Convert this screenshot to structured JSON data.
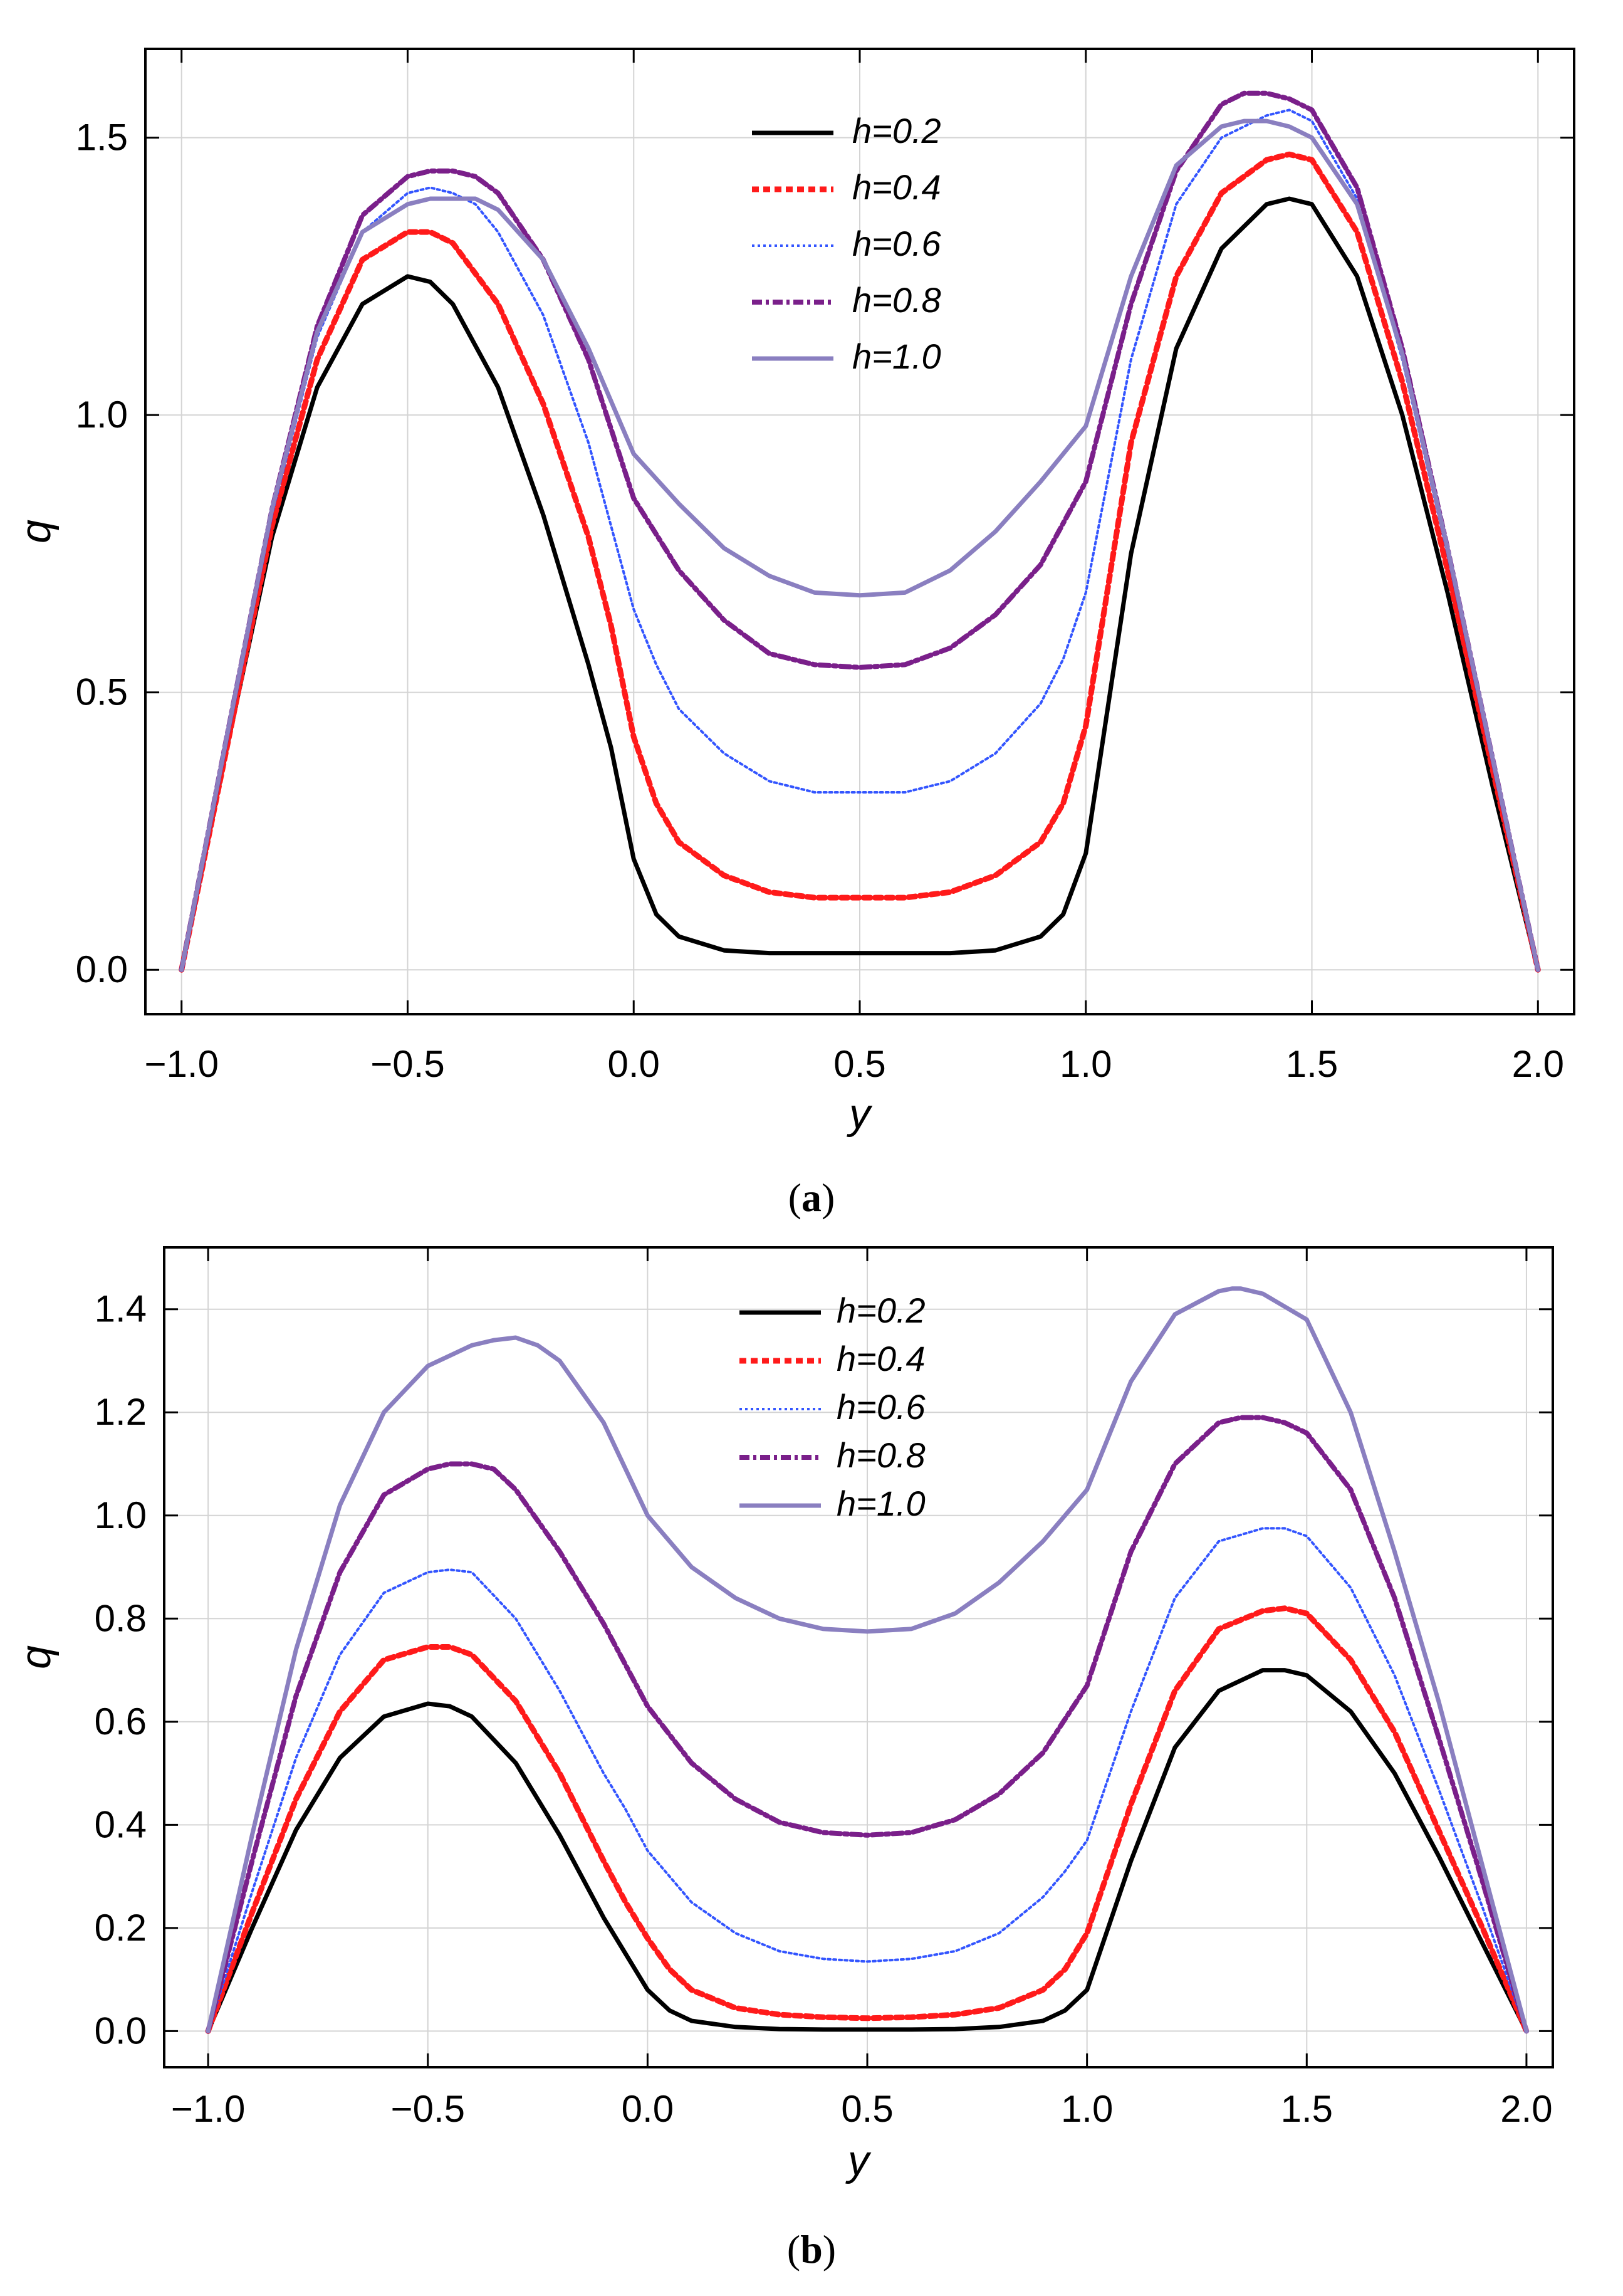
{
  "chart_data": [
    {
      "type": "line",
      "panel": "a",
      "caption_prefix": "(",
      "caption_letter": "a",
      "caption_suffix": ")",
      "xlabel": "y",
      "ylabel": "q",
      "xlim": [
        -1.08,
        2.08
      ],
      "ylim": [
        -0.08,
        1.66
      ],
      "xticks": [
        -1.0,
        -0.5,
        0.0,
        0.5,
        1.0,
        1.5,
        2.0
      ],
      "xtick_labels": [
        "−1.0",
        "−0.5",
        "0.0",
        "0.5",
        "1.0",
        "1.5",
        "2.0"
      ],
      "yticks": [
        0.0,
        0.5,
        1.0,
        1.5
      ],
      "ytick_labels": [
        "0.0",
        "0.5",
        "1.0",
        "1.5"
      ],
      "grid": true,
      "legend_position": "top-center",
      "series": [
        {
          "name": "h=0.2",
          "style": "solid",
          "color": "#000000",
          "x": [
            -1.0,
            -0.9,
            -0.8,
            -0.7,
            -0.6,
            -0.5,
            -0.45,
            -0.4,
            -0.3,
            -0.2,
            -0.1,
            -0.05,
            0.0,
            0.05,
            0.1,
            0.2,
            0.3,
            0.4,
            0.5,
            0.6,
            0.7,
            0.8,
            0.9,
            0.95,
            1.0,
            1.1,
            1.2,
            1.3,
            1.4,
            1.45,
            1.5,
            1.6,
            1.7,
            1.8,
            1.9,
            2.0
          ],
          "values": [
            0.0,
            0.4,
            0.78,
            1.05,
            1.2,
            1.25,
            1.24,
            1.2,
            1.05,
            0.82,
            0.55,
            0.4,
            0.2,
            0.1,
            0.06,
            0.035,
            0.03,
            0.03,
            0.03,
            0.03,
            0.03,
            0.035,
            0.06,
            0.1,
            0.21,
            0.75,
            1.12,
            1.3,
            1.38,
            1.39,
            1.38,
            1.25,
            1.0,
            0.68,
            0.33,
            0.0
          ]
        },
        {
          "name": "h=0.4",
          "style": "dashed",
          "color": "#ff1a1a",
          "x": [
            -1.0,
            -0.9,
            -0.8,
            -0.7,
            -0.6,
            -0.5,
            -0.45,
            -0.4,
            -0.3,
            -0.2,
            -0.1,
            -0.05,
            0.0,
            0.05,
            0.1,
            0.2,
            0.3,
            0.4,
            0.5,
            0.6,
            0.7,
            0.8,
            0.9,
            0.95,
            1.0,
            1.1,
            1.2,
            1.3,
            1.4,
            1.45,
            1.5,
            1.6,
            1.7,
            1.8,
            1.9,
            2.0
          ],
          "values": [
            0.0,
            0.4,
            0.8,
            1.1,
            1.28,
            1.33,
            1.33,
            1.31,
            1.2,
            1.02,
            0.78,
            0.62,
            0.42,
            0.3,
            0.23,
            0.17,
            0.14,
            0.13,
            0.13,
            0.13,
            0.14,
            0.17,
            0.23,
            0.3,
            0.44,
            0.95,
            1.25,
            1.4,
            1.46,
            1.47,
            1.46,
            1.33,
            1.06,
            0.72,
            0.36,
            0.0
          ]
        },
        {
          "name": "h=0.6",
          "style": "dotted",
          "color": "#3355ff",
          "x": [
            -1.0,
            -0.9,
            -0.8,
            -0.7,
            -0.6,
            -0.5,
            -0.45,
            -0.4,
            -0.35,
            -0.3,
            -0.2,
            -0.1,
            0.0,
            0.05,
            0.1,
            0.2,
            0.3,
            0.4,
            0.5,
            0.6,
            0.7,
            0.8,
            0.9,
            0.95,
            1.0,
            1.1,
            1.2,
            1.3,
            1.4,
            1.45,
            1.5,
            1.6,
            1.7,
            1.8,
            1.9,
            2.0
          ],
          "values": [
            0.0,
            0.41,
            0.82,
            1.14,
            1.33,
            1.4,
            1.41,
            1.4,
            1.38,
            1.33,
            1.18,
            0.95,
            0.65,
            0.55,
            0.47,
            0.39,
            0.34,
            0.32,
            0.32,
            0.32,
            0.34,
            0.39,
            0.48,
            0.56,
            0.68,
            1.1,
            1.38,
            1.5,
            1.54,
            1.55,
            1.53,
            1.39,
            1.1,
            0.75,
            0.37,
            0.0
          ]
        },
        {
          "name": "h=0.8",
          "style": "dashdot",
          "color": "#7a1f8a",
          "x": [
            -1.0,
            -0.9,
            -0.8,
            -0.7,
            -0.6,
            -0.5,
            -0.45,
            -0.4,
            -0.35,
            -0.3,
            -0.2,
            -0.1,
            0.0,
            0.1,
            0.2,
            0.3,
            0.4,
            0.5,
            0.6,
            0.7,
            0.8,
            0.9,
            1.0,
            1.1,
            1.2,
            1.3,
            1.35,
            1.4,
            1.45,
            1.5,
            1.6,
            1.7,
            1.8,
            1.9,
            2.0
          ],
          "values": [
            0.0,
            0.42,
            0.83,
            1.16,
            1.36,
            1.43,
            1.44,
            1.44,
            1.43,
            1.4,
            1.28,
            1.1,
            0.85,
            0.72,
            0.63,
            0.57,
            0.55,
            0.545,
            0.55,
            0.58,
            0.64,
            0.73,
            0.88,
            1.2,
            1.44,
            1.56,
            1.58,
            1.58,
            1.57,
            1.55,
            1.41,
            1.12,
            0.76,
            0.38,
            0.0
          ]
        },
        {
          "name": "h=1.0",
          "style": "solid",
          "color": "#8a7fc0",
          "x": [
            -1.0,
            -0.9,
            -0.8,
            -0.7,
            -0.6,
            -0.5,
            -0.45,
            -0.4,
            -0.35,
            -0.3,
            -0.2,
            -0.1,
            0.0,
            0.1,
            0.2,
            0.3,
            0.4,
            0.5,
            0.6,
            0.7,
            0.8,
            0.9,
            1.0,
            1.1,
            1.2,
            1.3,
            1.35,
            1.4,
            1.45,
            1.5,
            1.6,
            1.7,
            1.8,
            1.9,
            2.0
          ],
          "values": [
            0.0,
            0.42,
            0.83,
            1.15,
            1.33,
            1.38,
            1.39,
            1.39,
            1.39,
            1.37,
            1.28,
            1.12,
            0.93,
            0.84,
            0.76,
            0.71,
            0.68,
            0.675,
            0.68,
            0.72,
            0.79,
            0.88,
            0.98,
            1.25,
            1.45,
            1.52,
            1.53,
            1.53,
            1.52,
            1.5,
            1.38,
            1.11,
            0.76,
            0.38,
            0.0
          ]
        }
      ]
    },
    {
      "type": "line",
      "panel": "b",
      "caption_prefix": "(",
      "caption_letter": "b",
      "caption_suffix": ")",
      "xlabel": "y",
      "ylabel": "q",
      "xlim": [
        -1.1,
        2.06
      ],
      "ylim": [
        -0.07,
        1.52
      ],
      "xticks": [
        -1.0,
        -0.5,
        0.0,
        0.5,
        1.0,
        1.5,
        2.0
      ],
      "xtick_labels": [
        "−1.0",
        "−0.5",
        "0.0",
        "0.5",
        "1.0",
        "1.5",
        "2.0"
      ],
      "yticks": [
        0.0,
        0.2,
        0.4,
        0.6,
        0.8,
        1.0,
        1.2,
        1.4
      ],
      "ytick_labels": [
        "0.0",
        "0.2",
        "0.4",
        "0.6",
        "0.8",
        "1.0",
        "1.2",
        "1.4"
      ],
      "grid": true,
      "legend_position": "top-center",
      "series": [
        {
          "name": "h=0.2",
          "style": "solid",
          "color": "#000000",
          "x": [
            -1.0,
            -0.9,
            -0.8,
            -0.7,
            -0.6,
            -0.5,
            -0.45,
            -0.4,
            -0.3,
            -0.2,
            -0.1,
            -0.05,
            0.0,
            0.05,
            0.1,
            0.2,
            0.3,
            0.4,
            0.5,
            0.6,
            0.7,
            0.8,
            0.9,
            0.95,
            1.0,
            1.1,
            1.2,
            1.3,
            1.4,
            1.45,
            1.5,
            1.6,
            1.7,
            1.8,
            1.9,
            2.0
          ],
          "values": [
            0.0,
            0.2,
            0.39,
            0.53,
            0.61,
            0.635,
            0.63,
            0.61,
            0.52,
            0.38,
            0.22,
            0.15,
            0.08,
            0.04,
            0.02,
            0.008,
            0.004,
            0.003,
            0.003,
            0.003,
            0.004,
            0.008,
            0.02,
            0.04,
            0.08,
            0.33,
            0.55,
            0.66,
            0.7,
            0.7,
            0.69,
            0.62,
            0.5,
            0.34,
            0.17,
            0.0
          ]
        },
        {
          "name": "h=0.4",
          "style": "dashed",
          "color": "#ff1a1a",
          "x": [
            -1.0,
            -0.9,
            -0.8,
            -0.7,
            -0.6,
            -0.5,
            -0.45,
            -0.4,
            -0.3,
            -0.2,
            -0.1,
            -0.05,
            0.0,
            0.05,
            0.1,
            0.2,
            0.3,
            0.4,
            0.5,
            0.6,
            0.7,
            0.8,
            0.9,
            0.95,
            1.0,
            1.1,
            1.2,
            1.3,
            1.4,
            1.45,
            1.5,
            1.6,
            1.7,
            1.8,
            1.9,
            2.0
          ],
          "values": [
            0.0,
            0.23,
            0.45,
            0.62,
            0.72,
            0.745,
            0.745,
            0.73,
            0.64,
            0.5,
            0.33,
            0.25,
            0.18,
            0.12,
            0.08,
            0.045,
            0.032,
            0.027,
            0.025,
            0.027,
            0.032,
            0.045,
            0.08,
            0.12,
            0.19,
            0.44,
            0.66,
            0.78,
            0.815,
            0.82,
            0.81,
            0.72,
            0.58,
            0.39,
            0.2,
            0.0
          ]
        },
        {
          "name": "h=0.6",
          "style": "dotted",
          "color": "#3355ff",
          "x": [
            -1.0,
            -0.9,
            -0.8,
            -0.7,
            -0.6,
            -0.5,
            -0.45,
            -0.4,
            -0.3,
            -0.2,
            -0.1,
            -0.05,
            0.0,
            0.05,
            0.1,
            0.2,
            0.3,
            0.4,
            0.5,
            0.6,
            0.7,
            0.8,
            0.9,
            0.95,
            1.0,
            1.1,
            1.2,
            1.3,
            1.4,
            1.45,
            1.5,
            1.6,
            1.7,
            1.8,
            1.9,
            2.0
          ],
          "values": [
            0.0,
            0.27,
            0.53,
            0.73,
            0.85,
            0.89,
            0.895,
            0.89,
            0.8,
            0.66,
            0.5,
            0.43,
            0.35,
            0.3,
            0.25,
            0.19,
            0.155,
            0.14,
            0.135,
            0.14,
            0.155,
            0.19,
            0.26,
            0.31,
            0.37,
            0.62,
            0.84,
            0.95,
            0.975,
            0.975,
            0.96,
            0.86,
            0.69,
            0.47,
            0.24,
            0.0
          ]
        },
        {
          "name": "h=0.8",
          "style": "dashdot",
          "color": "#7a1f8a",
          "x": [
            -1.0,
            -0.9,
            -0.8,
            -0.7,
            -0.6,
            -0.5,
            -0.45,
            -0.4,
            -0.35,
            -0.3,
            -0.2,
            -0.1,
            0.0,
            0.1,
            0.2,
            0.3,
            0.4,
            0.5,
            0.6,
            0.7,
            0.8,
            0.9,
            1.0,
            1.1,
            1.2,
            1.3,
            1.35,
            1.4,
            1.45,
            1.5,
            1.6,
            1.7,
            1.8,
            1.9,
            2.0
          ],
          "values": [
            0.0,
            0.33,
            0.65,
            0.89,
            1.04,
            1.09,
            1.1,
            1.1,
            1.09,
            1.05,
            0.93,
            0.79,
            0.63,
            0.52,
            0.45,
            0.405,
            0.385,
            0.38,
            0.385,
            0.41,
            0.46,
            0.54,
            0.67,
            0.93,
            1.1,
            1.18,
            1.19,
            1.19,
            1.18,
            1.16,
            1.05,
            0.84,
            0.57,
            0.29,
            0.0
          ]
        },
        {
          "name": "h=1.0",
          "style": "solid",
          "color": "#8a7fc0",
          "x": [
            -1.0,
            -0.9,
            -0.8,
            -0.7,
            -0.6,
            -0.5,
            -0.45,
            -0.4,
            -0.35,
            -0.3,
            -0.25,
            -0.2,
            -0.1,
            0.0,
            0.1,
            0.2,
            0.3,
            0.4,
            0.5,
            0.6,
            0.7,
            0.8,
            0.9,
            1.0,
            1.1,
            1.2,
            1.3,
            1.33,
            1.35,
            1.4,
            1.5,
            1.6,
            1.7,
            1.8,
            1.9,
            2.0
          ],
          "values": [
            0.0,
            0.38,
            0.74,
            1.02,
            1.2,
            1.29,
            1.31,
            1.33,
            1.34,
            1.345,
            1.33,
            1.3,
            1.18,
            1.0,
            0.9,
            0.84,
            0.8,
            0.78,
            0.775,
            0.78,
            0.81,
            0.87,
            0.95,
            1.05,
            1.26,
            1.39,
            1.435,
            1.44,
            1.44,
            1.43,
            1.38,
            1.2,
            0.93,
            0.64,
            0.32,
            0.0
          ]
        }
      ]
    }
  ]
}
